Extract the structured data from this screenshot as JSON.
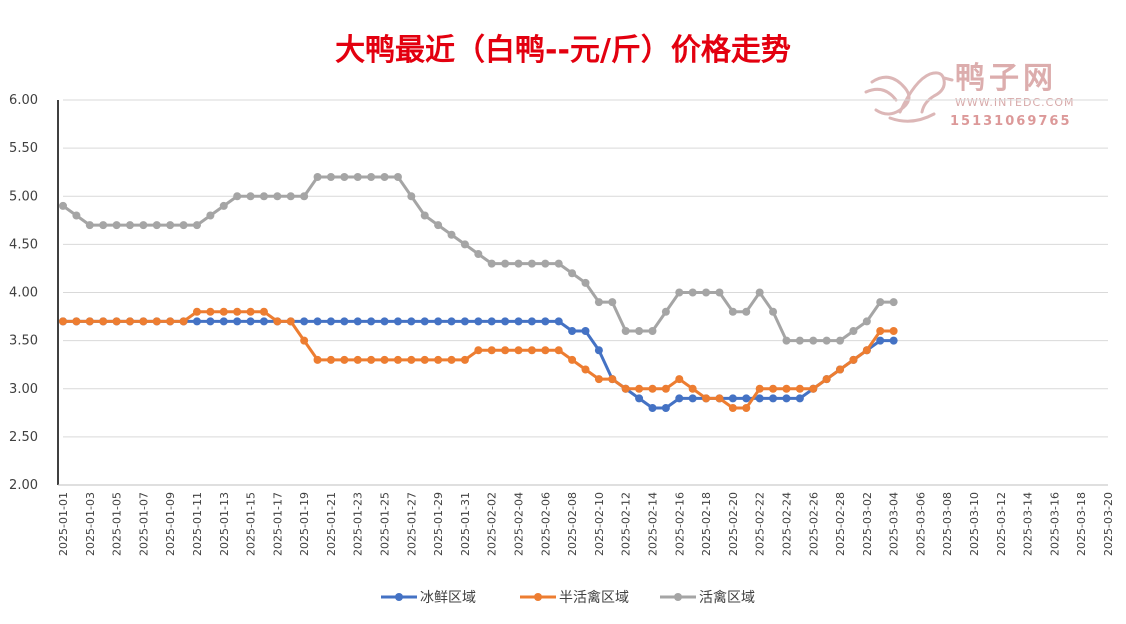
{
  "chart_data": {
    "type": "line",
    "title": "大鸭最近（白鸭--元/斤）价格走势",
    "ylim": [
      2.0,
      6.0
    ],
    "yticks": [
      "2.00",
      "2.50",
      "3.00",
      "3.50",
      "4.00",
      "4.50",
      "5.00",
      "5.50",
      "6.00"
    ],
    "grid": "horizontal",
    "legend_position": "bottom",
    "x_start": "2025-01-01",
    "x_end": "2025-03-20",
    "x_tick_labels": [
      "2025-01-01",
      "2025-01-03",
      "2025-01-05",
      "2025-01-07",
      "2025-01-09",
      "2025-01-11",
      "2025-01-13",
      "2025-01-15",
      "2025-01-17",
      "2025-01-19",
      "2025-01-21",
      "2025-01-23",
      "2025-01-25",
      "2025-01-27",
      "2025-01-29",
      "2025-01-31",
      "2025-02-02",
      "2025-02-04",
      "2025-02-06",
      "2025-02-08",
      "2025-02-10",
      "2025-02-12",
      "2025-02-14",
      "2025-02-16",
      "2025-02-18",
      "2025-02-20",
      "2025-02-22",
      "2025-02-24",
      "2025-02-26",
      "2025-02-28",
      "2025-03-02",
      "2025-03-04",
      "2025-03-06",
      "2025-03-08",
      "2025-03-10",
      "2025-03-12",
      "2025-03-14",
      "2025-03-16",
      "2025-03-18",
      "2025-03-20"
    ],
    "x": [
      "2025-01-01",
      "2025-01-02",
      "2025-01-03",
      "2025-01-04",
      "2025-01-05",
      "2025-01-06",
      "2025-01-07",
      "2025-01-08",
      "2025-01-09",
      "2025-01-10",
      "2025-01-11",
      "2025-01-12",
      "2025-01-13",
      "2025-01-14",
      "2025-01-15",
      "2025-01-16",
      "2025-01-17",
      "2025-01-18",
      "2025-01-19",
      "2025-01-20",
      "2025-01-21",
      "2025-01-22",
      "2025-01-23",
      "2025-01-24",
      "2025-01-25",
      "2025-01-26",
      "2025-01-27",
      "2025-01-28",
      "2025-01-29",
      "2025-01-30",
      "2025-01-31",
      "2025-02-01",
      "2025-02-02",
      "2025-02-03",
      "2025-02-04",
      "2025-02-05",
      "2025-02-06",
      "2025-02-07",
      "2025-02-08",
      "2025-02-09",
      "2025-02-10",
      "2025-02-11",
      "2025-02-12",
      "2025-02-13",
      "2025-02-14",
      "2025-02-15",
      "2025-02-16",
      "2025-02-17",
      "2025-02-18",
      "2025-02-19",
      "2025-02-20",
      "2025-02-21",
      "2025-02-22",
      "2025-02-23",
      "2025-02-24",
      "2025-02-25",
      "2025-02-26",
      "2025-02-27",
      "2025-02-28",
      "2025-03-01",
      "2025-03-02",
      "2025-03-03",
      "2025-03-04"
    ],
    "series": [
      {
        "name": "冰鲜区域",
        "color": "#4472c4",
        "values": [
          3.7,
          3.7,
          3.7,
          3.7,
          3.7,
          3.7,
          3.7,
          3.7,
          3.7,
          3.7,
          3.7,
          3.7,
          3.7,
          3.7,
          3.7,
          3.7,
          3.7,
          3.7,
          3.7,
          3.7,
          3.7,
          3.7,
          3.7,
          3.7,
          3.7,
          3.7,
          3.7,
          3.7,
          3.7,
          3.7,
          3.7,
          3.7,
          3.7,
          3.7,
          3.7,
          3.7,
          3.7,
          3.7,
          3.6,
          3.6,
          3.4,
          3.1,
          3.0,
          2.9,
          2.8,
          2.8,
          2.9,
          2.9,
          2.9,
          2.9,
          2.9,
          2.9,
          2.9,
          2.9,
          2.9,
          2.9,
          3.0,
          3.1,
          3.2,
          3.3,
          3.4,
          3.5,
          3.5
        ]
      },
      {
        "name": "半活禽区域",
        "color": "#ed7d31",
        "values": [
          3.7,
          3.7,
          3.7,
          3.7,
          3.7,
          3.7,
          3.7,
          3.7,
          3.7,
          3.7,
          3.8,
          3.8,
          3.8,
          3.8,
          3.8,
          3.8,
          3.7,
          3.7,
          3.5,
          3.3,
          3.3,
          3.3,
          3.3,
          3.3,
          3.3,
          3.3,
          3.3,
          3.3,
          3.3,
          3.3,
          3.3,
          3.4,
          3.4,
          3.4,
          3.4,
          3.4,
          3.4,
          3.4,
          3.3,
          3.2,
          3.1,
          3.1,
          3.0,
          3.0,
          3.0,
          3.0,
          3.1,
          3.0,
          2.9,
          2.9,
          2.8,
          2.8,
          3.0,
          3.0,
          3.0,
          3.0,
          3.0,
          3.1,
          3.2,
          3.3,
          3.4,
          3.6,
          3.6
        ]
      },
      {
        "name": "活禽区域",
        "color": "#a5a5a5",
        "values": [
          4.9,
          4.8,
          4.7,
          4.7,
          4.7,
          4.7,
          4.7,
          4.7,
          4.7,
          4.7,
          4.7,
          4.8,
          4.9,
          5.0,
          5.0,
          5.0,
          5.0,
          5.0,
          5.0,
          5.2,
          5.2,
          5.2,
          5.2,
          5.2,
          5.2,
          5.2,
          5.0,
          4.8,
          4.7,
          4.6,
          4.5,
          4.4,
          4.3,
          4.3,
          4.3,
          4.3,
          4.3,
          4.3,
          4.2,
          4.1,
          3.9,
          3.9,
          3.6,
          3.6,
          3.6,
          3.8,
          4.0,
          4.0,
          4.0,
          4.0,
          3.8,
          3.8,
          4.0,
          3.8,
          3.5,
          3.5,
          3.5,
          3.5,
          3.5,
          3.6,
          3.7,
          3.9,
          3.9
        ]
      }
    ]
  },
  "watermark": {
    "brand": "鸭子网",
    "url": "WWW.INTEDC.COM",
    "phone": "15131069765",
    "color": "#d9a5a5"
  }
}
